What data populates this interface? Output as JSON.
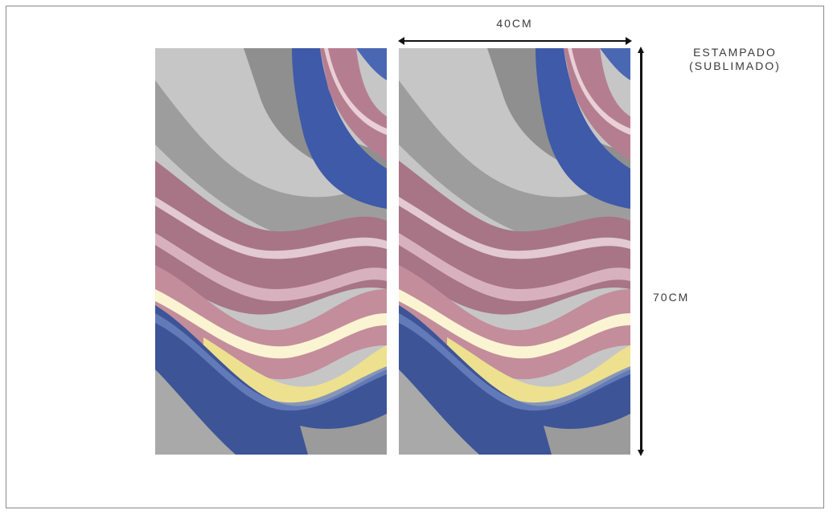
{
  "dimensions": {
    "width_label": "40CM",
    "height_label": "70CM"
  },
  "print_method": {
    "line1": "ESTAMPADO",
    "line2": "(SUBLIMADO)"
  },
  "artwork": {
    "description_icon": "abstract-wave-pattern",
    "colors": {
      "grey_light": "#c4c4c4",
      "grey_dark": "#8e8e8e",
      "blue": "#3d5aa3",
      "pink": "#b07a8c",
      "yellow": "#eee39a",
      "white": "#fbfaf4"
    }
  }
}
